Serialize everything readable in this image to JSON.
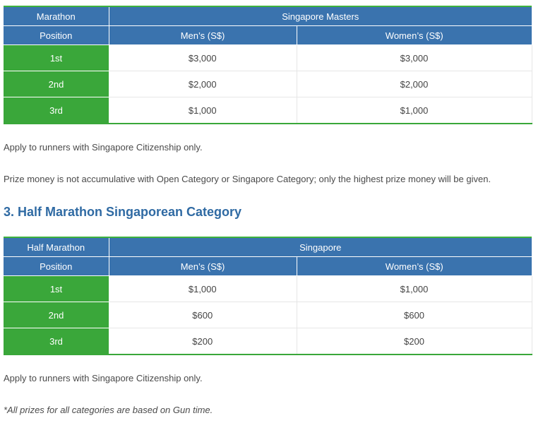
{
  "table1": {
    "col1_header": "Marathon",
    "group_header": "Singapore Masters",
    "position_header": "Position",
    "men_header": "Men’s (S$)",
    "women_header": "Women’s (S$)",
    "rows": [
      {
        "position": "1st",
        "men": "$3,000",
        "women": "$3,000"
      },
      {
        "position": "2nd",
        "men": "$2,000",
        "women": "$2,000"
      },
      {
        "position": "3rd",
        "men": "$1,000",
        "women": "$1,000"
      }
    ]
  },
  "para1": "Apply to runners with Singapore Citizenship only.",
  "para2": "Prize money is not accumulative with Open Category or Singapore Category; only the highest prize money will be given.",
  "section_heading": "3. Half Marathon Singaporean Category",
  "table2": {
    "col1_header": "Half Marathon",
    "group_header": "Singapore",
    "position_header": "Position",
    "men_header": "Men’s (S$)",
    "women_header": "Women’s (S$)",
    "rows": [
      {
        "position": "1st",
        "men": "$1,000",
        "women": "$1,000"
      },
      {
        "position": "2nd",
        "men": "$600",
        "women": "$600"
      },
      {
        "position": "3rd",
        "men": "$200",
        "women": "$200"
      }
    ]
  },
  "para3": "Apply to runners with Singapore Citizenship only.",
  "note": "*All prizes for all categories are based on Gun time.",
  "colors": {
    "header_blue": "#3a73ae",
    "position_green": "#3aa73a",
    "heading_blue": "#2f6aa3"
  }
}
